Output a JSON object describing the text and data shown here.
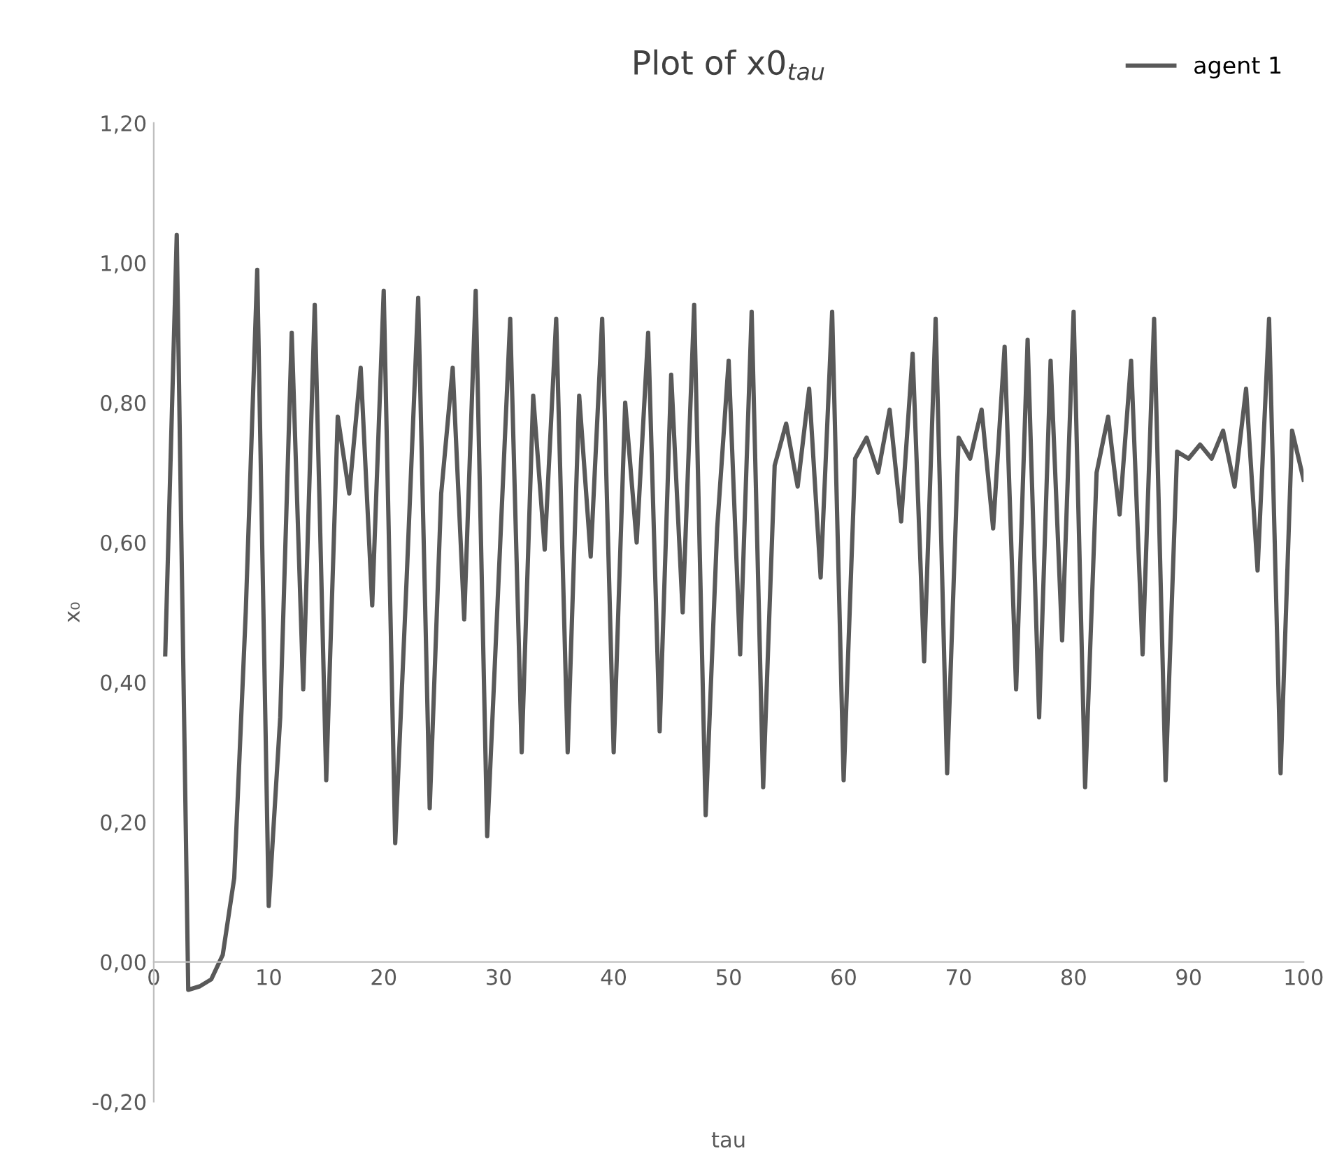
{
  "chart_data": {
    "type": "line",
    "title": "Plot of x0$_{tau}$",
    "xlabel": "tau",
    "ylabel": "x₀",
    "x": [
      1,
      2,
      3,
      4,
      5,
      6,
      7,
      8,
      9,
      10,
      11,
      12,
      13,
      14,
      15,
      16,
      17,
      18,
      19,
      20,
      21,
      22,
      23,
      24,
      25,
      26,
      27,
      28,
      29,
      30,
      31,
      32,
      33,
      34,
      35,
      36,
      37,
      38,
      39,
      40,
      41,
      42,
      43,
      44,
      45,
      46,
      47,
      48,
      49,
      50,
      51,
      52,
      53,
      54,
      55,
      56,
      57,
      58,
      59,
      60,
      61,
      62,
      63,
      64,
      65,
      66,
      67,
      68,
      69,
      70,
      71,
      72,
      73,
      74,
      75,
      76,
      77,
      78,
      79,
      80,
      81,
      82,
      83,
      84,
      85,
      86,
      87,
      88,
      89,
      90,
      91,
      92,
      93,
      94,
      95,
      96,
      97,
      98,
      99,
      100
    ],
    "series": [
      {
        "name": "agent 1",
        "color": "#595959",
        "values": [
          0.44,
          1.04,
          -0.04,
          -0.035,
          -0.025,
          0.01,
          0.12,
          0.5,
          0.99,
          0.08,
          0.35,
          0.9,
          0.39,
          0.94,
          0.26,
          0.78,
          0.67,
          0.85,
          0.51,
          0.96,
          0.17,
          0.55,
          0.95,
          0.22,
          0.67,
          0.85,
          0.49,
          0.96,
          0.18,
          0.55,
          0.92,
          0.3,
          0.81,
          0.59,
          0.92,
          0.3,
          0.81,
          0.58,
          0.92,
          0.3,
          0.8,
          0.6,
          0.9,
          0.33,
          0.84,
          0.5,
          0.94,
          0.21,
          0.62,
          0.86,
          0.44,
          0.93,
          0.25,
          0.71,
          0.77,
          0.68,
          0.82,
          0.55,
          0.93,
          0.26,
          0.72,
          0.75,
          0.7,
          0.79,
          0.63,
          0.87,
          0.43,
          0.92,
          0.27,
          0.75,
          0.72,
          0.79,
          0.62,
          0.88,
          0.39,
          0.89,
          0.35,
          0.86,
          0.46,
          0.93,
          0.25,
          0.7,
          0.78,
          0.64,
          0.86,
          0.44,
          0.92,
          0.26,
          0.73,
          0.72,
          0.74,
          0.72,
          0.76,
          0.68,
          0.82,
          0.56,
          0.92,
          0.27,
          0.76,
          0.69
        ]
      }
    ],
    "xlim": [
      0,
      100
    ],
    "xticks": [
      0,
      10,
      20,
      30,
      40,
      50,
      60,
      70,
      80,
      90,
      100
    ],
    "ylim": [
      -0.2,
      1.2
    ],
    "yticks": [
      {
        "value": -0.2,
        "label": "-0,20"
      },
      {
        "value": 0,
        "label": "0,00"
      },
      {
        "value": 0.2,
        "label": "0,20"
      },
      {
        "value": 0.4,
        "label": "0,40"
      },
      {
        "value": 0.6,
        "label": "0,60"
      },
      {
        "value": 0.8,
        "label": "0,80"
      },
      {
        "value": 1.0,
        "label": "1,00"
      },
      {
        "value": 1.2,
        "label": "1,20"
      }
    ],
    "grid": false,
    "legend": "top right",
    "marker": "none",
    "line_style": "solid"
  }
}
